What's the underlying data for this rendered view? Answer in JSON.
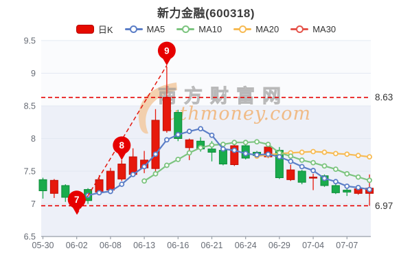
{
  "title": "新力金融(600318)",
  "legend": {
    "items": [
      {
        "name": "day-k",
        "label": "日K",
        "type": "rect",
        "color": "#e60b00",
        "border": "#b50800"
      },
      {
        "name": "ma5",
        "label": "MA5",
        "type": "line",
        "color": "#5b7ec7"
      },
      {
        "name": "ma10",
        "label": "MA10",
        "type": "line",
        "color": "#7cc47f"
      },
      {
        "name": "ma20",
        "label": "MA20",
        "type": "line",
        "color": "#f7bb54"
      },
      {
        "name": "ma30",
        "label": "MA30",
        "type": "line",
        "color": "#e5544b"
      }
    ]
  },
  "watermark": {
    "cn": "南方财富网",
    "en": "uthmoney.com"
  },
  "chart_data": {
    "type": "candlestick",
    "title": "新力金融(600318)",
    "stock_code": "600318",
    "up_means": "close>=open (red)",
    "down_means": "close<open (green)",
    "candles": [
      {
        "d": "05-30",
        "o": 7.37,
        "c": 7.2,
        "h": 7.4,
        "l": 7.08
      },
      {
        "d": "05-31",
        "o": 7.16,
        "c": 7.36,
        "h": 7.38,
        "l": 7.09
      },
      {
        "d": "06-01",
        "o": 7.28,
        "c": 7.1,
        "h": 7.3,
        "l": 7.03
      },
      {
        "d": "06-02",
        "o": 7.1,
        "c": 6.95,
        "h": 7.12,
        "l": 6.85
      },
      {
        "d": "06-06",
        "o": 7.22,
        "c": 7.05,
        "h": 7.24,
        "l": 7.0
      },
      {
        "d": "06-07",
        "o": 7.18,
        "c": 7.37,
        "h": 7.44,
        "l": 7.15
      },
      {
        "d": "06-08",
        "o": 7.21,
        "c": 7.5,
        "h": 7.55,
        "l": 7.18
      },
      {
        "d": "06-09",
        "o": 7.38,
        "c": 7.61,
        "h": 7.67,
        "l": 7.35
      },
      {
        "d": "06-10",
        "o": 7.45,
        "c": 7.72,
        "h": 7.85,
        "l": 7.43
      },
      {
        "d": "06-13",
        "o": 7.55,
        "c": 7.67,
        "h": 7.81,
        "l": 7.47
      },
      {
        "d": "06-14",
        "o": 7.54,
        "c": 8.28,
        "h": 8.45,
        "l": 7.5
      },
      {
        "d": "06-15",
        "o": 8.12,
        "c": 8.63,
        "h": 9.1,
        "l": 8.09
      },
      {
        "d": "06-16",
        "o": 8.4,
        "c": 8.0,
        "h": 8.44,
        "l": 7.96
      },
      {
        "d": "06-17",
        "o": 7.86,
        "c": 7.98,
        "h": 8.0,
        "l": 7.67
      },
      {
        "d": "06-20",
        "o": 7.96,
        "c": 7.84,
        "h": 8.02,
        "l": 7.8
      },
      {
        "d": "06-21",
        "o": 7.84,
        "c": 7.79,
        "h": 7.96,
        "l": 7.65
      },
      {
        "d": "06-22",
        "o": 7.82,
        "c": 7.61,
        "h": 7.87,
        "l": 7.59
      },
      {
        "d": "06-23",
        "o": 7.6,
        "c": 7.89,
        "h": 7.91,
        "l": 7.58
      },
      {
        "d": "06-24",
        "o": 7.89,
        "c": 7.7,
        "h": 7.9,
        "l": 7.68
      },
      {
        "d": "06-27",
        "o": 7.79,
        "c": 7.74,
        "h": 7.81,
        "l": 7.71
      },
      {
        "d": "06-28",
        "o": 7.72,
        "c": 7.87,
        "h": 7.89,
        "l": 7.7
      },
      {
        "d": "06-29",
        "o": 7.82,
        "c": 7.4,
        "h": 7.87,
        "l": 7.38
      },
      {
        "d": "06-30",
        "o": 7.37,
        "c": 7.52,
        "h": 7.6,
        "l": 7.35
      },
      {
        "d": "07-01",
        "o": 7.5,
        "c": 7.33,
        "h": 7.52,
        "l": 7.3
      },
      {
        "d": "07-04",
        "o": 7.4,
        "c": 7.41,
        "h": 7.46,
        "l": 7.21
      },
      {
        "d": "07-05",
        "o": 7.43,
        "c": 7.28,
        "h": 7.45,
        "l": 7.26
      },
      {
        "d": "07-06",
        "o": 7.28,
        "c": 7.17,
        "h": 7.3,
        "l": 7.15
      },
      {
        "d": "07-07",
        "o": 7.21,
        "c": 7.18,
        "h": 7.26,
        "l": 7.12
      },
      {
        "d": "07-08",
        "o": 7.16,
        "c": 7.23,
        "h": 7.26,
        "l": 7.14
      },
      {
        "d": "07-11",
        "o": 7.16,
        "c": 7.24,
        "h": 7.45,
        "l": 6.97
      }
    ],
    "ma5": [
      null,
      null,
      null,
      null,
      7.13,
      7.17,
      7.19,
      7.3,
      7.45,
      7.57,
      7.76,
      7.98,
      8.06,
      8.11,
      8.15,
      8.05,
      7.84,
      7.82,
      7.77,
      7.75,
      7.76,
      7.72,
      7.65,
      7.57,
      7.51,
      7.39,
      7.34,
      7.27,
      7.25,
      7.22
    ],
    "ma10": [
      null,
      null,
      null,
      null,
      null,
      null,
      null,
      null,
      null,
      7.35,
      7.46,
      7.59,
      7.68,
      7.78,
      7.86,
      7.9,
      7.91,
      7.94,
      7.94,
      7.95,
      7.91,
      7.78,
      7.73,
      7.67,
      7.63,
      7.58,
      7.53,
      7.46,
      7.41,
      7.36
    ],
    "ma20": [
      null,
      null,
      null,
      null,
      null,
      null,
      null,
      null,
      null,
      null,
      null,
      null,
      null,
      null,
      null,
      null,
      null,
      null,
      null,
      7.73,
      7.75,
      7.77,
      7.78,
      7.79,
      7.8,
      7.79,
      7.77,
      7.76,
      7.74,
      7.72
    ],
    "ma30": [],
    "y_axis": {
      "min": 6.5,
      "max": 9.5,
      "ticks": [
        6.5,
        7,
        7.5,
        8,
        8.5,
        9,
        9.5
      ]
    },
    "x_ticks": {
      "every": 3,
      "labels": [
        "05-30",
        "06-02",
        "06-08",
        "06-13",
        "06-16",
        "06-21",
        "06-24",
        "06-29",
        "07-04",
        "07-07"
      ]
    },
    "reference_lines": [
      {
        "value": 8.63,
        "label": "8.63"
      },
      {
        "value": 6.97,
        "label": "6.97"
      }
    ],
    "annotations": [
      {
        "label": "7",
        "index": 3,
        "price": 6.84
      },
      {
        "label": "8",
        "index": 7,
        "price": 7.67
      },
      {
        "label": "9",
        "index": 11,
        "price": 9.12
      }
    ],
    "trendline": {
      "from": {
        "index": 3,
        "price": 6.84
      },
      "to": {
        "index": 11,
        "price": 9.12
      }
    },
    "grid": true,
    "legend_position": "top",
    "colors": {
      "up": "#e6190c",
      "up_border": "#c00f05",
      "down": "#1aab4c",
      "down_border": "#0e8c3a",
      "ma5": "#5b7ec7",
      "ma10": "#7cc47f",
      "ma20": "#f7bb54",
      "ma30": "#e5544b",
      "annotation": "#e60000",
      "trendline": "#e3170d",
      "grid_line": "#e3e8f2",
      "axis": "#989ea8",
      "tick_label": "#666b74",
      "ref_label": "#333333",
      "band_bg": "#edf0f8",
      "upper_bg": "#fafbfd",
      "watermark_cn": "#9a9a9a",
      "watermark_en": "#f2983d"
    }
  }
}
